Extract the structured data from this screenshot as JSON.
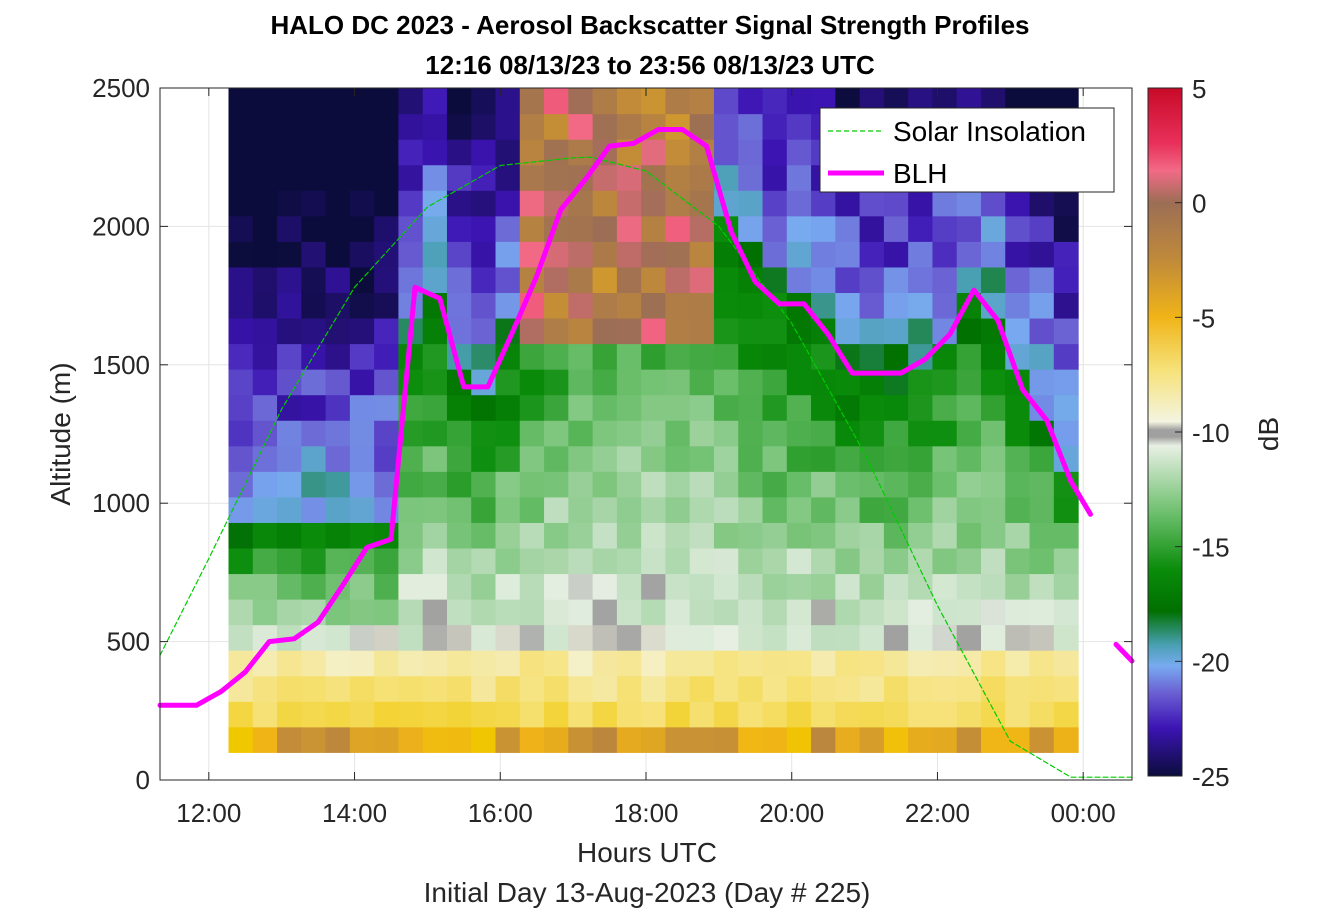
{
  "chart_data": {
    "type": "heatmap",
    "title": "HALO DC 2023 - Aerosol Backscatter Signal Strength Profiles",
    "subtitle": "12:16 08/13/23 to 23:56 08/13/23  UTC",
    "xlabel": "Hours UTC",
    "footnote": "Initial Day 13-Aug-2023 (Day # 225)",
    "ylabel": "Altitude (m)",
    "colorbar_label": "dB",
    "xlim": [
      11.33,
      24.67
    ],
    "ylim": [
      0,
      2500
    ],
    "x_ticks": [
      12,
      14,
      16,
      18,
      20,
      22,
      24
    ],
    "x_tick_labels": [
      "12:00",
      "14:00",
      "16:00",
      "18:00",
      "20:00",
      "22:00",
      "00:00"
    ],
    "y_ticks": [
      0,
      500,
      1000,
      1500,
      2000,
      2500
    ],
    "y_tick_labels": [
      "0",
      "500",
      "1000",
      "1500",
      "2000",
      "2500"
    ],
    "clim": [
      -25,
      5
    ],
    "colorbar_ticks": [
      5,
      0,
      -5,
      -10,
      -15,
      -20,
      -25
    ],
    "colorbar_tick_labels": [
      "5",
      "0",
      "-5",
      "-10",
      "-15",
      "-20",
      "-25"
    ],
    "grid": true,
    "legend_location": "top-right",
    "series": [
      {
        "name": "Solar Insolation",
        "style": "dashed",
        "color": "#00cc00",
        "x": [
          11.33,
          12,
          13,
          14,
          15,
          16,
          17,
          17.25,
          18,
          19,
          20,
          21,
          22,
          23,
          23.83,
          24,
          24.67
        ],
        "y": [
          450,
          800,
          1340,
          1780,
          2070,
          2220,
          2248,
          2250,
          2200,
          2000,
          1650,
          1180,
          630,
          140,
          10,
          10,
          10
        ]
      },
      {
        "name": "BLH",
        "style": "solid",
        "color": "#ff00ff",
        "x": [
          11.33,
          11.83,
          12.17,
          12.5,
          12.83,
          13.17,
          13.5,
          13.83,
          14.17,
          14.5,
          14.83,
          15.17,
          15.5,
          15.83,
          16.17,
          16.5,
          16.83,
          17.17,
          17.5,
          17.83,
          18.17,
          18.5,
          18.83,
          19.17,
          19.5,
          19.83,
          20.17,
          20.5,
          20.83,
          21.17,
          21.5,
          21.83,
          22.17,
          22.5,
          22.83,
          23.17,
          23.5,
          23.83,
          24.1
        ],
        "y": [
          270,
          270,
          320,
          390,
          500,
          510,
          570,
          700,
          840,
          870,
          1780,
          1740,
          1420,
          1420,
          1620,
          1820,
          2060,
          2170,
          2290,
          2300,
          2350,
          2350,
          2290,
          1980,
          1800,
          1720,
          1720,
          1610,
          1470,
          1470,
          1470,
          1520,
          1610,
          1770,
          1660,
          1410,
          1300,
          1080,
          960
        ]
      },
      {
        "name": "BLH",
        "segment": 2,
        "style": "solid",
        "color": "#ff00ff",
        "x": [
          24.45,
          24.67
        ],
        "y": [
          490,
          430
        ]
      }
    ],
    "heatmap": {
      "x_start": 12.27,
      "x_end": 23.93,
      "y_start": 100,
      "y_end": 2500,
      "note": "backscatter signal strength field in dB, columns roughly every 20 min"
    }
  }
}
